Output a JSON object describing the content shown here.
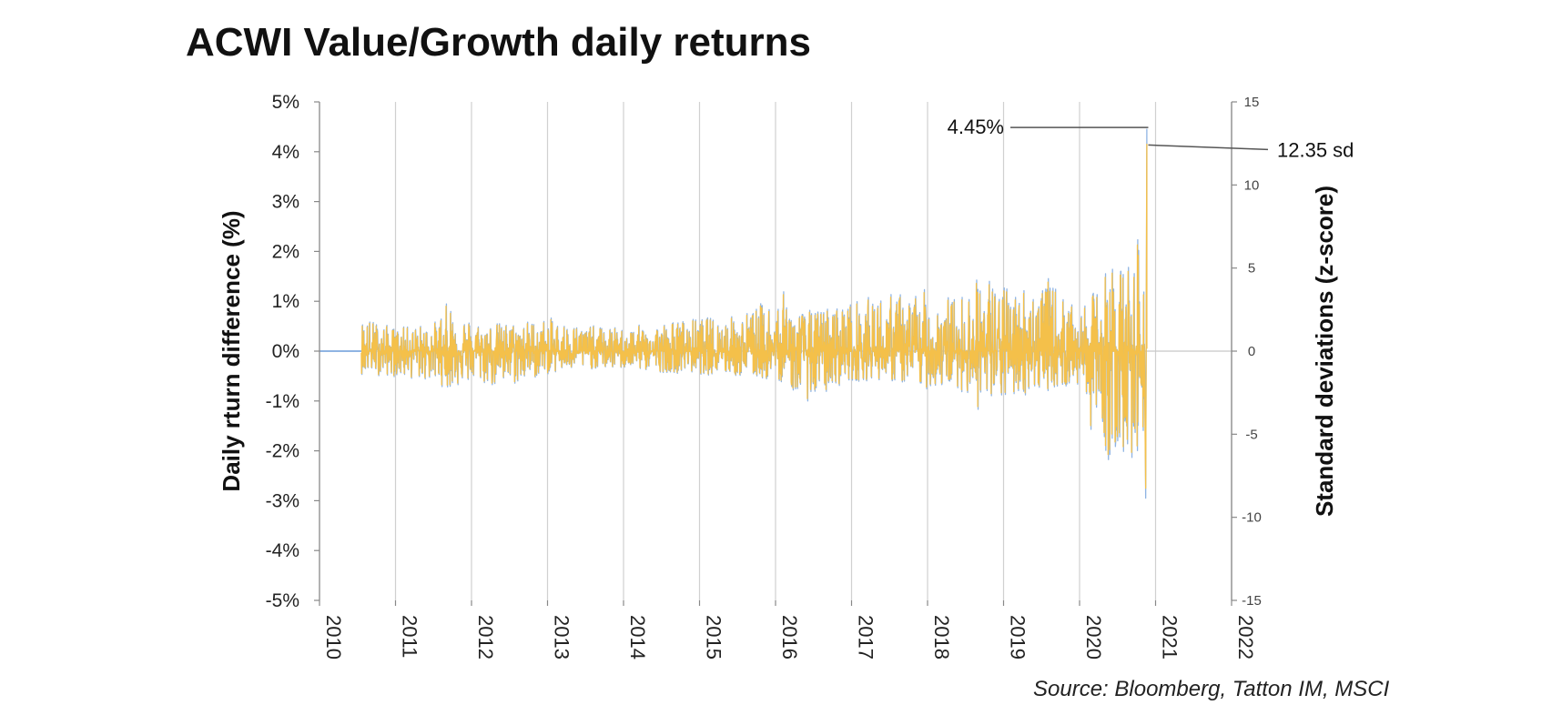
{
  "chart_data": {
    "type": "line",
    "title": "ACWI Value/Growth daily returns",
    "source": "Source: Bloomberg, Tatton IM, MSCI",
    "ylabel": "Daily rturn difference (%)",
    "y2label": "Standard deviations (z-score)",
    "xlabel": "",
    "x_ticks": [
      "2010",
      "2011",
      "2012",
      "2013",
      "2014",
      "2015",
      "2016",
      "2017",
      "2018",
      "2019",
      "2020",
      "2021",
      "2022"
    ],
    "y_ticks": [
      "5%",
      "4%",
      "3%",
      "2%",
      "1%",
      "0%",
      "-1%",
      "-2%",
      "-3%",
      "-4%",
      "-5%"
    ],
    "y2_ticks": [
      "15",
      "10",
      "5",
      "0",
      "-5",
      "-10",
      "-15"
    ],
    "xlim": [
      2010,
      2022
    ],
    "ylim": [
      -5,
      5
    ],
    "y2lim": [
      -15,
      15
    ],
    "grid": "vertical",
    "series": [
      {
        "name": "daily return difference",
        "axis": "left",
        "color": "#f4c04a",
        "envelope": [
          {
            "x": 2010.6,
            "max": 0.66,
            "min": -0.45
          },
          {
            "x": 2011.0,
            "max": 0.45,
            "min": -0.5
          },
          {
            "x": 2011.5,
            "max": 0.55,
            "min": -0.6
          },
          {
            "x": 2011.7,
            "max": 1.0,
            "min": -0.75
          },
          {
            "x": 2012.0,
            "max": 0.6,
            "min": -0.6
          },
          {
            "x": 2012.4,
            "max": 0.55,
            "min": -0.75
          },
          {
            "x": 2013.0,
            "max": 0.65,
            "min": -0.45
          },
          {
            "x": 2013.5,
            "max": 0.5,
            "min": -0.35
          },
          {
            "x": 2014.0,
            "max": 0.45,
            "min": -0.35
          },
          {
            "x": 2014.4,
            "max": 0.55,
            "min": -0.4
          },
          {
            "x": 2015.0,
            "max": 0.65,
            "min": -0.45
          },
          {
            "x": 2015.5,
            "max": 0.7,
            "min": -0.5
          },
          {
            "x": 2016.1,
            "max": 1.15,
            "min": -0.6
          },
          {
            "x": 2016.3,
            "max": 0.8,
            "min": -0.9
          },
          {
            "x": 2016.5,
            "max": 0.8,
            "min": -1.0
          },
          {
            "x": 2016.9,
            "max": 0.95,
            "min": -0.6
          },
          {
            "x": 2017.4,
            "max": 1.1,
            "min": -0.55
          },
          {
            "x": 2017.9,
            "max": 1.2,
            "min": -0.75
          },
          {
            "x": 2018.4,
            "max": 1.05,
            "min": -0.7
          },
          {
            "x": 2018.75,
            "max": 1.6,
            "min": -1.3
          },
          {
            "x": 2019.0,
            "max": 1.25,
            "min": -0.95
          },
          {
            "x": 2019.6,
            "max": 1.4,
            "min": -0.75
          },
          {
            "x": 2020.0,
            "max": 0.7,
            "min": -0.7
          },
          {
            "x": 2020.2,
            "max": 1.2,
            "min": -1.8
          },
          {
            "x": 2020.4,
            "max": 1.75,
            "min": -2.15
          },
          {
            "x": 2020.6,
            "max": 1.85,
            "min": -2.2
          },
          {
            "x": 2020.75,
            "max": 2.2,
            "min": -2.0
          },
          {
            "x": 2020.85,
            "max": 1.6,
            "min": -1.5
          },
          {
            "x": 2020.88,
            "max": 4.45,
            "min": -2.95
          }
        ]
      },
      {
        "name": "z-score",
        "axis": "right",
        "color": "#8fb4e3",
        "envelope_note": "same envelope scaled to z-score axis"
      }
    ],
    "annotations": [
      {
        "label": "4.45%",
        "value": 4.45,
        "axis": "left",
        "x": 2020.88
      },
      {
        "label": "12.35 sd",
        "value": 12.35,
        "axis": "right",
        "x": 2020.88
      }
    ]
  }
}
